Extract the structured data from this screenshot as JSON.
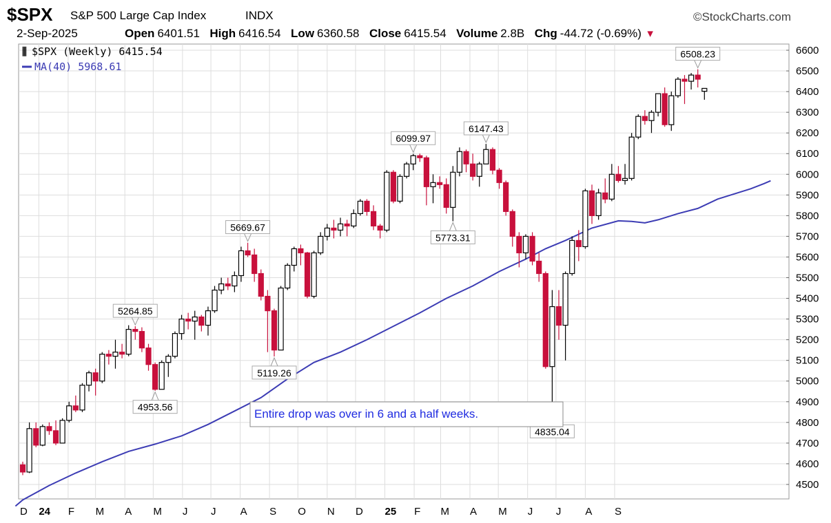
{
  "header": {
    "symbol": "$SPX",
    "name": "S&P 500 Large Cap Index",
    "exchange": "INDX",
    "brand": "©StockCharts.com",
    "date": "2-Sep-2025",
    "open_label": "Open",
    "open": "6401.51",
    "high_label": "High",
    "high": "6416.54",
    "low_label": "Low",
    "low": "6360.58",
    "close_label": "Close",
    "close": "6415.54",
    "volume_label": "Volume",
    "volume": "2.8B",
    "chg_label": "Chg",
    "chg": "-44.72 (-0.69%)",
    "chg_arrow": "▾"
  },
  "legend": {
    "price": "$SPX (Weekly) 6415.54",
    "ma": "MA(40) 5968.61"
  },
  "colors": {
    "up_candle": "#000000",
    "down_candle": "#c8103c",
    "ma_line": "#3c3cb4",
    "note_text": "#1f2be0"
  },
  "chart_data": {
    "type": "candlestick",
    "timeframe": "weekly",
    "x_start": "2023-12-15",
    "ylim": [
      4430,
      6630
    ],
    "yticks": [
      4500,
      4600,
      4700,
      4800,
      4900,
      5000,
      5100,
      5200,
      5300,
      5400,
      5500,
      5600,
      5700,
      5800,
      5900,
      6000,
      6100,
      6200,
      6300,
      6400,
      6500,
      6600
    ],
    "month_labels": [
      {
        "label": "D",
        "date": "2023-12-01"
      },
      {
        "label": "24",
        "date": "2024-01-01",
        "bold": true
      },
      {
        "label": "F",
        "date": "2024-02-01"
      },
      {
        "label": "M",
        "date": "2024-03-01"
      },
      {
        "label": "A",
        "date": "2024-04-01"
      },
      {
        "label": "M",
        "date": "2024-05-01"
      },
      {
        "label": "J",
        "date": "2024-06-01"
      },
      {
        "label": "J",
        "date": "2024-07-01"
      },
      {
        "label": "A",
        "date": "2024-08-01"
      },
      {
        "label": "S",
        "date": "2024-09-01"
      },
      {
        "label": "O",
        "date": "2024-10-01"
      },
      {
        "label": "N",
        "date": "2024-11-01"
      },
      {
        "label": "D",
        "date": "2024-12-01"
      },
      {
        "label": "25",
        "date": "2025-01-01",
        "bold": true
      },
      {
        "label": "F",
        "date": "2025-02-01"
      },
      {
        "label": "M",
        "date": "2025-03-01"
      },
      {
        "label": "A",
        "date": "2025-04-01"
      },
      {
        "label": "M",
        "date": "2025-05-01"
      },
      {
        "label": "J",
        "date": "2025-06-01"
      },
      {
        "label": "J",
        "date": "2025-07-01"
      },
      {
        "label": "A",
        "date": "2025-08-01"
      },
      {
        "label": "S",
        "date": "2025-09-01"
      }
    ],
    "candles": [
      [
        4595,
        4610,
        4545,
        4560
      ],
      [
        4560,
        4800,
        4555,
        4770
      ],
      [
        4770,
        4800,
        4680,
        4690
      ],
      [
        4690,
        4790,
        4685,
        4780
      ],
      [
        4780,
        4800,
        4740,
        4760
      ],
      [
        4760,
        4810,
        4690,
        4700
      ],
      [
        4700,
        4820,
        4700,
        4810
      ],
      [
        4810,
        4900,
        4800,
        4880
      ],
      [
        4880,
        4930,
        4850,
        4860
      ],
      [
        4860,
        4990,
        4850,
        4980
      ],
      [
        4980,
        5050,
        4950,
        5040
      ],
      [
        5040,
        5060,
        4930,
        5000
      ],
      [
        5000,
        5140,
        4990,
        5130
      ],
      [
        5130,
        5150,
        5080,
        5120
      ],
      [
        5120,
        5200,
        5060,
        5140
      ],
      [
        5140,
        5180,
        5110,
        5130
      ],
      [
        5130,
        5270,
        5120,
        5250
      ],
      [
        5250,
        5265,
        5200,
        5240
      ],
      [
        5240,
        5260,
        5140,
        5160
      ],
      [
        5160,
        5180,
        5050,
        5080
      ],
      [
        5080,
        5090,
        4953,
        4960
      ],
      [
        4960,
        5100,
        4960,
        5090
      ],
      [
        5090,
        5130,
        5020,
        5120
      ],
      [
        5120,
        5240,
        5110,
        5230
      ],
      [
        5230,
        5320,
        5200,
        5300
      ],
      [
        5300,
        5330,
        5250,
        5290
      ],
      [
        5290,
        5340,
        5200,
        5310
      ],
      [
        5310,
        5320,
        5240,
        5270
      ],
      [
        5270,
        5360,
        5220,
        5340
      ],
      [
        5340,
        5460,
        5330,
        5440
      ],
      [
        5440,
        5500,
        5420,
        5470
      ],
      [
        5470,
        5500,
        5440,
        5460
      ],
      [
        5460,
        5530,
        5430,
        5510
      ],
      [
        5510,
        5650,
        5480,
        5630
      ],
      [
        5630,
        5669,
        5600,
        5610
      ],
      [
        5610,
        5640,
        5480,
        5520
      ],
      [
        5520,
        5540,
        5390,
        5410
      ],
      [
        5410,
        5440,
        5140,
        5340
      ],
      [
        5340,
        5350,
        5119,
        5150
      ],
      [
        5150,
        5460,
        5150,
        5450
      ],
      [
        5450,
        5570,
        5440,
        5560
      ],
      [
        5560,
        5650,
        5530,
        5640
      ],
      [
        5640,
        5660,
        5560,
        5620
      ],
      [
        5620,
        5625,
        5400,
        5410
      ],
      [
        5410,
        5630,
        5400,
        5620
      ],
      [
        5620,
        5720,
        5610,
        5700
      ],
      [
        5700,
        5760,
        5680,
        5740
      ],
      [
        5740,
        5780,
        5690,
        5730
      ],
      [
        5730,
        5790,
        5700,
        5760
      ],
      [
        5760,
        5780,
        5700,
        5750
      ],
      [
        5750,
        5830,
        5740,
        5810
      ],
      [
        5810,
        5880,
        5800,
        5870
      ],
      [
        5870,
        5880,
        5800,
        5820
      ],
      [
        5820,
        5850,
        5730,
        5750
      ],
      [
        5750,
        5760,
        5690,
        5730
      ],
      [
        5730,
        6020,
        5720,
        6010
      ],
      [
        6010,
        6020,
        5860,
        5870
      ],
      [
        5870,
        6000,
        5860,
        5990
      ],
      [
        5990,
        6060,
        5980,
        6050
      ],
      [
        6050,
        6099,
        6020,
        6090
      ],
      [
        6090,
        6100,
        6060,
        6080
      ],
      [
        6080,
        6090,
        5850,
        5940
      ],
      [
        5940,
        6000,
        5860,
        5960
      ],
      [
        5960,
        5990,
        5930,
        5950
      ],
      [
        5950,
        5980,
        5810,
        5840
      ],
      [
        5840,
        6040,
        5773,
        6010
      ],
      [
        6010,
        6130,
        5990,
        6110
      ],
      [
        6110,
        6120,
        6010,
        6050
      ],
      [
        6050,
        6100,
        5970,
        5990
      ],
      [
        5990,
        6060,
        5940,
        6050
      ],
      [
        6050,
        6147,
        6050,
        6120
      ],
      [
        6120,
        6130,
        6000,
        6020
      ],
      [
        6020,
        6030,
        5930,
        5960
      ],
      [
        5960,
        5970,
        5800,
        5820
      ],
      [
        5820,
        5830,
        5650,
        5700
      ],
      [
        5700,
        5720,
        5550,
        5620
      ],
      [
        5620,
        5710,
        5590,
        5700
      ],
      [
        5700,
        5720,
        5560,
        5580
      ],
      [
        5580,
        5620,
        5480,
        5520
      ],
      [
        5520,
        5530,
        5060,
        5070
      ],
      [
        5070,
        5440,
        4835,
        5360
      ],
      [
        5360,
        5440,
        5200,
        5270
      ],
      [
        5270,
        5530,
        5100,
        5520
      ],
      [
        5520,
        5700,
        5510,
        5680
      ],
      [
        5680,
        5730,
        5580,
        5650
      ],
      [
        5650,
        5930,
        5640,
        5920
      ],
      [
        5920,
        5950,
        5760,
        5800
      ],
      [
        5800,
        5930,
        5780,
        5910
      ],
      [
        5910,
        5980,
        5860,
        5880
      ],
      [
        5880,
        6050,
        5870,
        6000
      ],
      [
        6000,
        6040,
        5960,
        5970
      ],
      [
        5970,
        6050,
        5950,
        5980
      ],
      [
        5980,
        6200,
        5970,
        6180
      ],
      [
        6180,
        6290,
        6170,
        6280
      ],
      [
        6280,
        6310,
        6240,
        6260
      ],
      [
        6260,
        6310,
        6200,
        6300
      ],
      [
        6300,
        6390,
        6280,
        6390
      ],
      [
        6390,
        6420,
        6230,
        6240
      ],
      [
        6240,
        6400,
        6210,
        6380
      ],
      [
        6380,
        6470,
        6370,
        6460
      ],
      [
        6460,
        6480,
        6340,
        6450
      ],
      [
        6450,
        6490,
        6410,
        6480
      ],
      [
        6480,
        6508,
        6420,
        6460
      ],
      [
        6401.51,
        6416.54,
        6360.58,
        6415.54
      ]
    ],
    "ma40": [
      [
        -1.1,
        4395
      ],
      [
        0,
        4425
      ],
      [
        4,
        4495
      ],
      [
        8,
        4555
      ],
      [
        12,
        4610
      ],
      [
        16,
        4660
      ],
      [
        20,
        4695
      ],
      [
        24,
        4735
      ],
      [
        28,
        4790
      ],
      [
        32,
        4855
      ],
      [
        36,
        4920
      ],
      [
        40,
        5010
      ],
      [
        44,
        5090
      ],
      [
        48,
        5140
      ],
      [
        52,
        5200
      ],
      [
        56,
        5265
      ],
      [
        60,
        5330
      ],
      [
        64,
        5400
      ],
      [
        68,
        5460
      ],
      [
        72,
        5530
      ],
      [
        76,
        5590
      ],
      [
        79,
        5640
      ],
      [
        82,
        5680
      ],
      [
        86,
        5740
      ],
      [
        90,
        5775
      ],
      [
        92,
        5772
      ],
      [
        94,
        5765
      ],
      [
        96,
        5780
      ],
      [
        99,
        5810
      ],
      [
        102,
        5835
      ],
      [
        105,
        5880
      ],
      [
        108,
        5910
      ],
      [
        110,
        5930
      ],
      [
        112,
        5955
      ],
      [
        113,
        5968.61
      ]
    ],
    "annotations": [
      {
        "text": "6508.23",
        "index": 102,
        "value": 6508.23,
        "position": "above"
      },
      {
        "text": "6099.97",
        "index": 59,
        "value": 6099.97,
        "position": "above"
      },
      {
        "text": "6147.43",
        "index": 70,
        "value": 6147.43,
        "position": "above"
      },
      {
        "text": "5669.67",
        "index": 34,
        "value": 5669.67,
        "position": "above"
      },
      {
        "text": "5264.85",
        "index": 17,
        "value": 5264.85,
        "position": "above"
      },
      {
        "text": "5773.31",
        "index": 65,
        "value": 5773.31,
        "position": "below"
      },
      {
        "text": "5119.26",
        "index": 38,
        "value": 5119.26,
        "position": "below"
      },
      {
        "text": "4953.56",
        "index": 20,
        "value": 4953.56,
        "position": "below"
      },
      {
        "text": "4835.04",
        "index": 80,
        "value": 4835.04,
        "position": "below"
      }
    ],
    "note": "Entire drop was over in 6 and a half weeks."
  }
}
